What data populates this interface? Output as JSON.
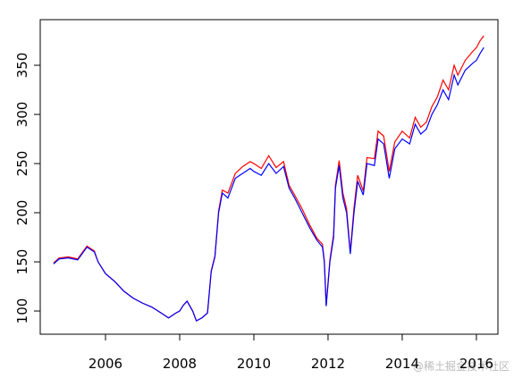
{
  "chart_data": {
    "type": "line",
    "x": [
      2004.6,
      2004.75,
      2005.0,
      2005.25,
      2005.5,
      2005.7,
      2005.8,
      2006.0,
      2006.25,
      2006.5,
      2006.75,
      2007.0,
      2007.25,
      2007.5,
      2007.7,
      2007.9,
      2008.0,
      2008.1,
      2008.2,
      2008.35,
      2008.45,
      2008.6,
      2008.75,
      2008.85,
      2008.95,
      2009.05,
      2009.15,
      2009.3,
      2009.5,
      2009.7,
      2009.9,
      2010.0,
      2010.2,
      2010.4,
      2010.6,
      2010.8,
      2010.95,
      2011.1,
      2011.3,
      2011.5,
      2011.7,
      2011.85,
      2011.9,
      2011.95,
      2012.05,
      2012.15,
      2012.2,
      2012.3,
      2012.4,
      2012.5,
      2012.6,
      2012.7,
      2012.8,
      2012.95,
      2013.05,
      2013.25,
      2013.35,
      2013.5,
      2013.65,
      2013.8,
      2014.0,
      2014.2,
      2014.35,
      2014.5,
      2014.65,
      2014.8,
      2014.95,
      2015.1,
      2015.25,
      2015.4,
      2015.5,
      2015.7,
      2015.9,
      2016.0,
      2016.1,
      2016.2
    ],
    "series": [
      {
        "color": "#ff0000",
        "values": [
          149,
          154,
          155,
          153,
          166,
          161,
          150,
          138,
          130,
          120,
          113,
          108,
          104,
          98,
          93,
          98,
          100,
          106,
          110,
          100,
          90,
          93,
          98,
          141,
          156,
          202,
          223,
          220,
          240,
          247,
          252,
          250,
          245,
          258,
          246,
          252,
          228,
          218,
          204,
          188,
          174,
          168,
          151,
          106,
          152,
          178,
          228,
          253,
          220,
          204,
          160,
          205,
          238,
          222,
          256,
          255,
          283,
          278,
          242,
          272,
          283,
          276,
          297,
          287,
          292,
          308,
          318,
          335,
          325,
          350,
          340,
          355,
          364,
          368,
          375,
          380
        ]
      },
      {
        "color": "#0000ff",
        "values": [
          148,
          153,
          154,
          152,
          165,
          160,
          150,
          138,
          130,
          120,
          113,
          108,
          104,
          98,
          93,
          98,
          100,
          106,
          110,
          100,
          90,
          93,
          98,
          140,
          155,
          200,
          220,
          215,
          235,
          240,
          245,
          242,
          238,
          250,
          240,
          247,
          225,
          215,
          200,
          185,
          172,
          165,
          150,
          105,
          150,
          175,
          225,
          248,
          215,
          200,
          158,
          200,
          232,
          218,
          250,
          248,
          275,
          270,
          235,
          265,
          275,
          270,
          290,
          280,
          285,
          300,
          310,
          325,
          315,
          340,
          330,
          345,
          352,
          355,
          362,
          368
        ]
      }
    ],
    "xlim": [
      2004.24,
      2016.58
    ],
    "ylim": [
      76.4,
      396.4
    ],
    "xticks": [
      2006,
      2008,
      2010,
      2012,
      2014,
      2016
    ],
    "yticks": [
      100,
      150,
      200,
      250,
      300,
      350
    ]
  },
  "watermark": "@稀土掘金技术社区"
}
